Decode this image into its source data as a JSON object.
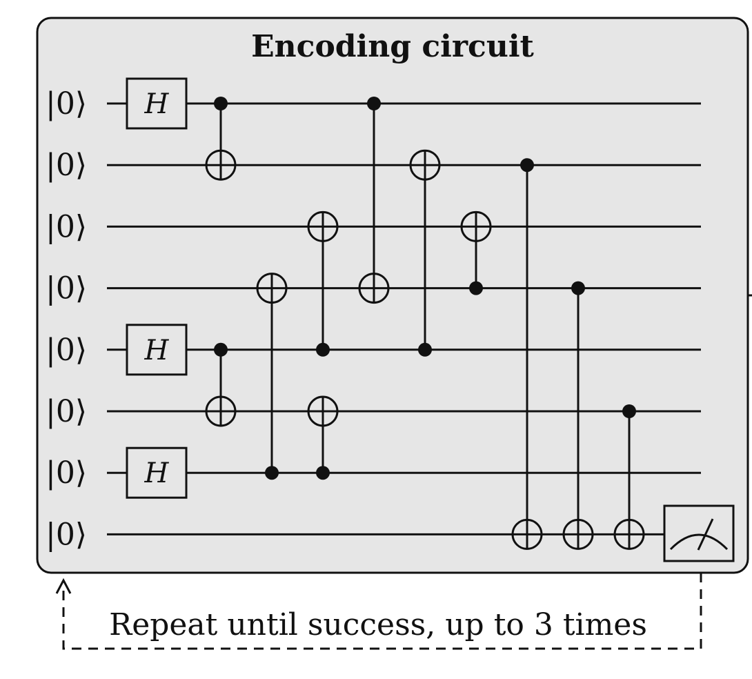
{
  "title": "Encoding circuit",
  "input_state_label": "|0⟩",
  "gate_h_label": "H",
  "caption": "Repeat until success, up to 3 times",
  "qubits": 8,
  "hadamards": [
    0,
    4,
    6
  ],
  "gates": [
    {
      "type": "cnot",
      "control": 0,
      "target": 1
    },
    {
      "type": "cnot",
      "control": 4,
      "target": 5
    },
    {
      "type": "cnot",
      "control": 6,
      "target": 3
    },
    {
      "type": "cnot",
      "control": 4,
      "target": 2
    },
    {
      "type": "cnot",
      "control": 6,
      "target": 5
    },
    {
      "type": "cnot",
      "control": 0,
      "target": 3
    },
    {
      "type": "cnot",
      "control": 4,
      "target": 1
    },
    {
      "type": "cnot",
      "control": 3,
      "target": 2
    },
    {
      "type": "cnot",
      "control": 1,
      "target": 7
    },
    {
      "type": "cnot",
      "control": 3,
      "target": 7
    },
    {
      "type": "cnot",
      "control": 5,
      "target": 7
    }
  ],
  "measured_qubit": 7,
  "colors": {
    "panel_fill": "#e6e6e6",
    "stroke": "#111111",
    "page_bg": "#ffffff"
  }
}
